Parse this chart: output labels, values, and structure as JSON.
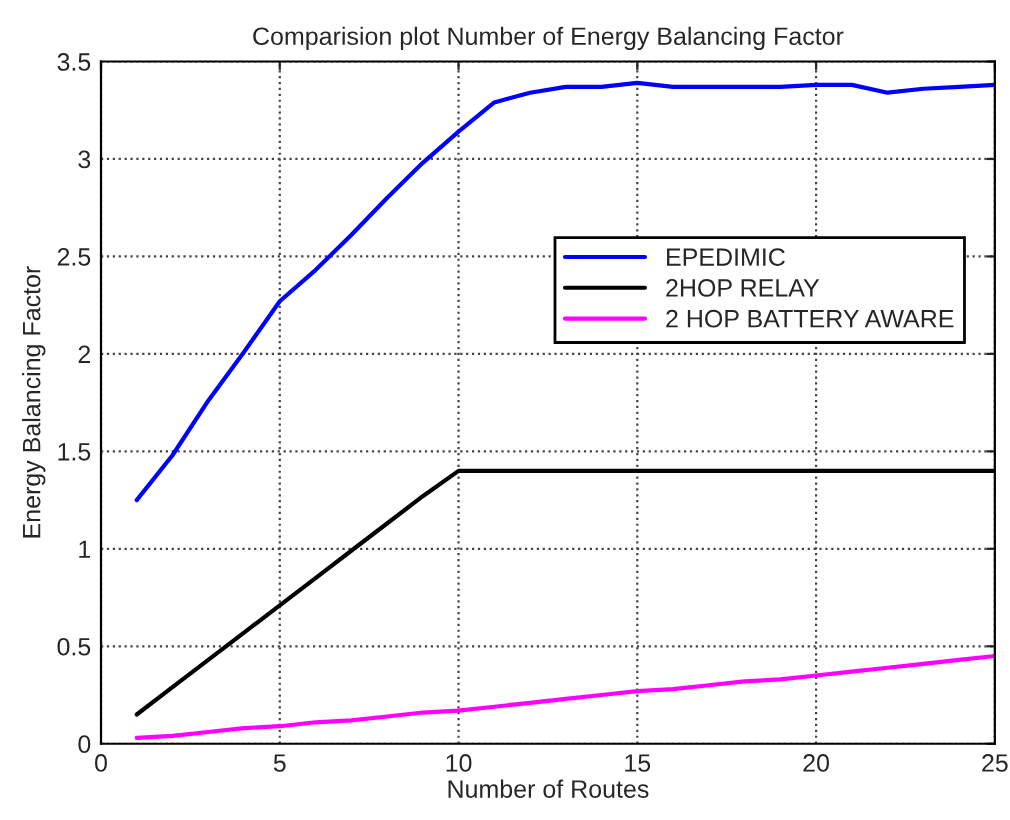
{
  "chart_data": {
    "type": "line",
    "title": "Comparision plot Number of Energy Balancing Factor",
    "xlabel": "Number of Routes",
    "ylabel": "Energy Balancing Factor",
    "x": [
      1,
      2,
      3,
      4,
      5,
      6,
      7,
      8,
      9,
      10,
      11,
      12,
      13,
      14,
      15,
      16,
      17,
      18,
      19,
      20,
      21,
      22,
      23,
      24,
      25
    ],
    "series": [
      {
        "name": "EPEDIMIC",
        "color": "#0000ff",
        "values": [
          1.25,
          1.48,
          1.76,
          2.01,
          2.27,
          2.43,
          2.61,
          2.8,
          2.98,
          3.14,
          3.29,
          3.34,
          3.37,
          3.37,
          3.39,
          3.37,
          3.37,
          3.37,
          3.37,
          3.38,
          3.38,
          3.34,
          3.36,
          3.37,
          3.38
        ]
      },
      {
        "name": "2HOP RELAY",
        "color": "#000000",
        "values": [
          0.15,
          0.29,
          0.43,
          0.57,
          0.71,
          0.85,
          0.99,
          1.13,
          1.27,
          1.4,
          1.4,
          1.4,
          1.4,
          1.4,
          1.4,
          1.4,
          1.4,
          1.4,
          1.4,
          1.4,
          1.4,
          1.4,
          1.4,
          1.4,
          1.4
        ]
      },
      {
        "name": "2 HOP BATTERY AWARE",
        "color": "#ff00ff",
        "values": [
          0.03,
          0.04,
          0.06,
          0.08,
          0.09,
          0.11,
          0.12,
          0.14,
          0.16,
          0.17,
          0.19,
          0.21,
          0.23,
          0.25,
          0.27,
          0.28,
          0.3,
          0.32,
          0.33,
          0.35,
          0.37,
          0.39,
          0.41,
          0.43,
          0.45
        ]
      }
    ],
    "xlim": [
      0,
      25
    ],
    "xticks": [
      0,
      5,
      10,
      15,
      20,
      25
    ],
    "ylim": [
      0,
      3.5
    ],
    "yticks": [
      0,
      0.5,
      1,
      1.5,
      2,
      2.5,
      3,
      3.5
    ],
    "grid": true,
    "legend": "right",
    "marker": "none",
    "line_style": "solid"
  }
}
